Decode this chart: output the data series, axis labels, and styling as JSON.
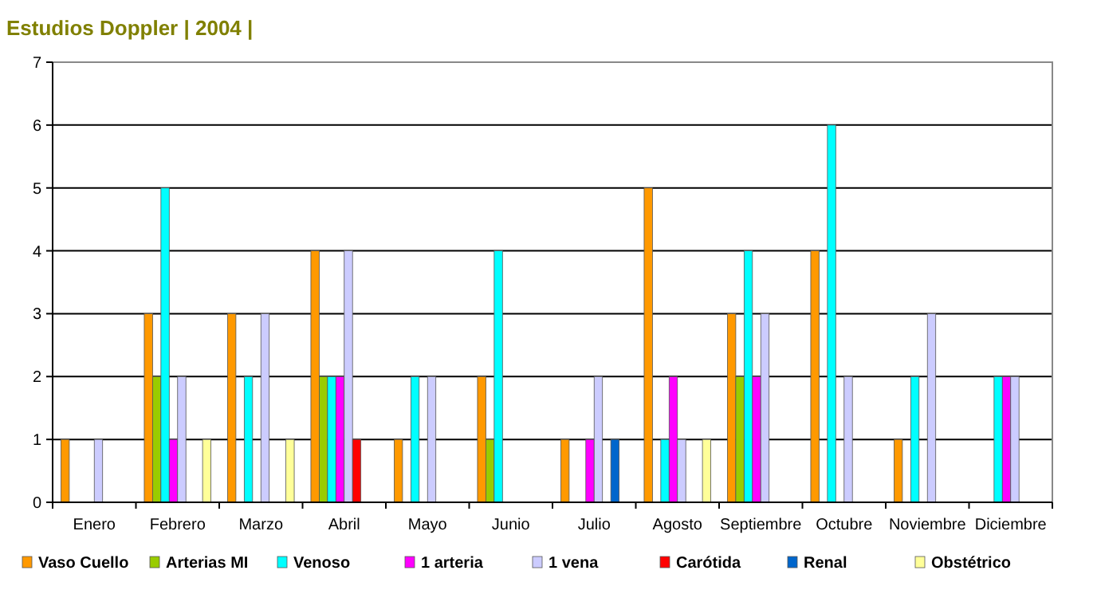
{
  "chart_data": {
    "type": "bar",
    "title": "Estudios Doppler | 2004 |",
    "categories": [
      "Enero",
      "Febrero",
      "Marzo",
      "Abril",
      "Mayo",
      "Junio",
      "Julio",
      "Agosto",
      "Septiembre",
      "Octubre",
      "Noviembre",
      "Diciembre"
    ],
    "series": [
      {
        "name": "Vaso Cuello",
        "color": "#ff9900",
        "values": [
          1,
          3,
          3,
          4,
          1,
          2,
          1,
          5,
          3,
          4,
          1,
          null
        ]
      },
      {
        "name": "Arterias MI",
        "color": "#99cc00",
        "values": [
          null,
          2,
          null,
          2,
          null,
          1,
          null,
          null,
          2,
          null,
          null,
          null
        ]
      },
      {
        "name": "Venoso",
        "color": "#00ffff",
        "values": [
          null,
          5,
          2,
          2,
          2,
          4,
          null,
          1,
          4,
          6,
          2,
          2
        ]
      },
      {
        "name": "1 arteria",
        "color": "#ff00ff",
        "values": [
          null,
          1,
          null,
          2,
          null,
          null,
          1,
          2,
          2,
          null,
          null,
          2
        ]
      },
      {
        "name": "1 vena",
        "color": "#ccccff",
        "values": [
          1,
          2,
          3,
          4,
          2,
          null,
          2,
          1,
          3,
          2,
          3,
          2
        ]
      },
      {
        "name": "Carótida",
        "color": "#ff0000",
        "values": [
          null,
          null,
          null,
          1,
          null,
          null,
          null,
          null,
          null,
          null,
          null,
          null
        ]
      },
      {
        "name": "Renal",
        "color": "#0066cc",
        "values": [
          null,
          null,
          null,
          null,
          null,
          null,
          1,
          null,
          null,
          null,
          null,
          null
        ]
      },
      {
        "name": "Obstétrico",
        "color": "#ffff99",
        "values": [
          null,
          1,
          1,
          null,
          null,
          null,
          null,
          1,
          null,
          null,
          null,
          null
        ]
      }
    ],
    "ylim": [
      0,
      7
    ],
    "yticks": [
      0,
      1,
      2,
      3,
      4,
      5,
      6,
      7
    ],
    "grid": "y",
    "legend": "bottom"
  }
}
